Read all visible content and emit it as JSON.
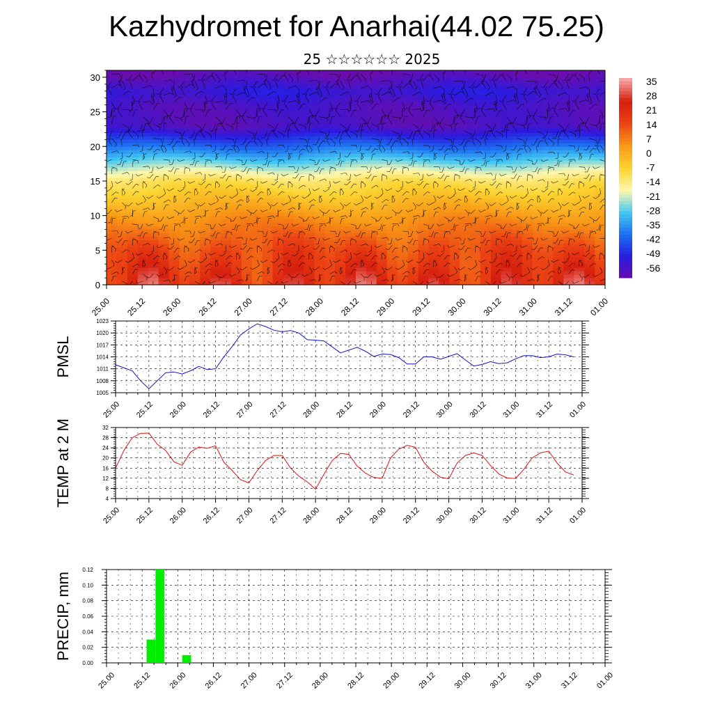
{
  "header": {
    "title": "Kazhydromet for Anarhai(44.02 75.25)",
    "subtitle": "25 ☆☆☆☆☆☆ 2025"
  },
  "time_labels": [
    "25.00",
    "25.12",
    "26.00",
    "26.12",
    "27.00",
    "27.12",
    "28.00",
    "28.12",
    "29.00",
    "29.12",
    "30.00",
    "30.12",
    "31.00",
    "31.12",
    "01.00"
  ],
  "chart_data": [
    {
      "type": "heatmap",
      "title": "",
      "xlabel": "",
      "ylabel": "",
      "x": [
        "25.00",
        "25.12",
        "26.00",
        "26.12",
        "27.00",
        "27.12",
        "28.00",
        "28.12",
        "29.00",
        "29.12",
        "30.00",
        "30.12",
        "31.00",
        "31.12",
        "01.00"
      ],
      "ylim": [
        0,
        31
      ],
      "yticks": [
        0,
        5,
        10,
        15,
        20,
        25,
        30
      ],
      "colorbar_labels": [
        "35",
        "28",
        "21",
        "14",
        "7",
        "0",
        "-7",
        "-14",
        "-21",
        "-28",
        "-35",
        "-42",
        "-49",
        "-56"
      ],
      "colors": {
        "stops": [
          "#6a0dad",
          "#2a1be0",
          "#1c6df0",
          "#44c8f2",
          "#fff8b0",
          "#fbd430",
          "#f99a17",
          "#ec4514",
          "#d61e0e",
          "#f5a3a3"
        ],
        "wind_barbs": "#000000"
      },
      "level_profile": [
        {
          "height": 0,
          "temp": 24
        },
        {
          "height": 5,
          "temp": 16
        },
        {
          "height": 10,
          "temp": 5
        },
        {
          "height": 15,
          "temp": -10
        },
        {
          "height": 18,
          "temp": -28
        },
        {
          "height": 20,
          "temp": -40
        },
        {
          "height": 23,
          "temp": -58
        },
        {
          "height": 26,
          "temp": -57
        },
        {
          "height": 28,
          "temp": -52
        },
        {
          "height": 31,
          "temp": -62
        }
      ]
    },
    {
      "type": "line",
      "ylabel": "PMSL",
      "ylim": [
        1005,
        1023
      ],
      "yticks": [
        1005,
        1008,
        1011,
        1014,
        1017,
        1020,
        1023
      ],
      "xlim": [
        0,
        168
      ],
      "color": "#1010d0",
      "x": [
        0,
        6,
        9,
        12,
        15,
        18,
        21,
        24,
        27,
        30,
        33,
        36,
        39,
        42,
        45,
        48,
        51,
        54,
        57,
        60,
        63,
        66,
        69,
        72,
        75,
        78,
        81,
        84,
        87,
        90,
        93,
        96,
        99,
        102,
        105,
        108,
        111,
        114,
        117,
        120,
        123,
        126,
        129,
        132,
        135,
        138,
        141,
        144,
        147,
        150,
        153,
        156,
        159,
        162,
        165
      ],
      "y": [
        1012.0,
        1010.5,
        1008.0,
        1006.0,
        1008.0,
        1010.0,
        1010.2,
        1009.7,
        1010.5,
        1011.6,
        1010.8,
        1011.0,
        1014.0,
        1016.6,
        1019.5,
        1021.0,
        1022.3,
        1021.6,
        1020.7,
        1020.3,
        1020.6,
        1020.0,
        1018.3,
        1018.2,
        1018.0,
        1016.5,
        1015.0,
        1015.7,
        1016.4,
        1015.4,
        1014.1,
        1014.7,
        1014.6,
        1013.8,
        1012.2,
        1012.2,
        1014.0,
        1014.0,
        1013.4,
        1014.1,
        1014.8,
        1013.2,
        1011.7,
        1012.1,
        1012.8,
        1012.3,
        1012.5,
        1013.5,
        1014.3,
        1014.3,
        1013.8,
        1014.0,
        1014.7,
        1014.5,
        1014.0
      ]
    },
    {
      "type": "line",
      "ylabel": "TEMP at 2 M",
      "ylim": [
        4,
        32
      ],
      "yticks": [
        4,
        8,
        12,
        16,
        20,
        24,
        28,
        32
      ],
      "xlim": [
        0,
        168
      ],
      "color": "#e01010",
      "x": [
        0,
        3,
        6,
        9,
        12,
        15,
        18,
        21,
        24,
        27,
        30,
        33,
        36,
        39,
        42,
        45,
        48,
        51,
        54,
        57,
        60,
        63,
        66,
        69,
        72,
        75,
        78,
        81,
        84,
        87,
        90,
        93,
        96,
        99,
        102,
        105,
        108,
        111,
        114,
        117,
        120,
        123,
        126,
        129,
        132,
        135,
        138,
        141,
        144,
        147,
        150,
        153,
        156,
        159,
        162,
        165
      ],
      "y": [
        16.0,
        23.0,
        28.0,
        29.7,
        29.8,
        25.4,
        23.0,
        18.5,
        17.1,
        22.3,
        24.3,
        23.8,
        24.8,
        18.3,
        15.0,
        11.4,
        10.2,
        15.0,
        19.0,
        21.0,
        21.0,
        16.0,
        12.8,
        10.6,
        7.7,
        13.5,
        19.0,
        21.8,
        21.4,
        16.8,
        14.0,
        12.3,
        12.0,
        20.0,
        23.5,
        25.0,
        24.2,
        18.3,
        14.8,
        12.4,
        11.8,
        18.0,
        21.0,
        22.0,
        21.0,
        17.0,
        13.7,
        12.1,
        11.9,
        15.5,
        20.0,
        22.0,
        22.7,
        18.0,
        14.5,
        13.3
      ]
    },
    {
      "type": "bar",
      "ylabel": "PRECIP, mm",
      "ylim": [
        0,
        0.12
      ],
      "yticks": [
        "0.00",
        "0.02",
        "0.04",
        "0.06",
        "0.08",
        "0.10",
        "0.12"
      ],
      "xlim": [
        0,
        168
      ],
      "color": "#00ee00",
      "x": [
        15,
        18,
        27
      ],
      "values": [
        0.03,
        0.12,
        0.01
      ]
    }
  ]
}
